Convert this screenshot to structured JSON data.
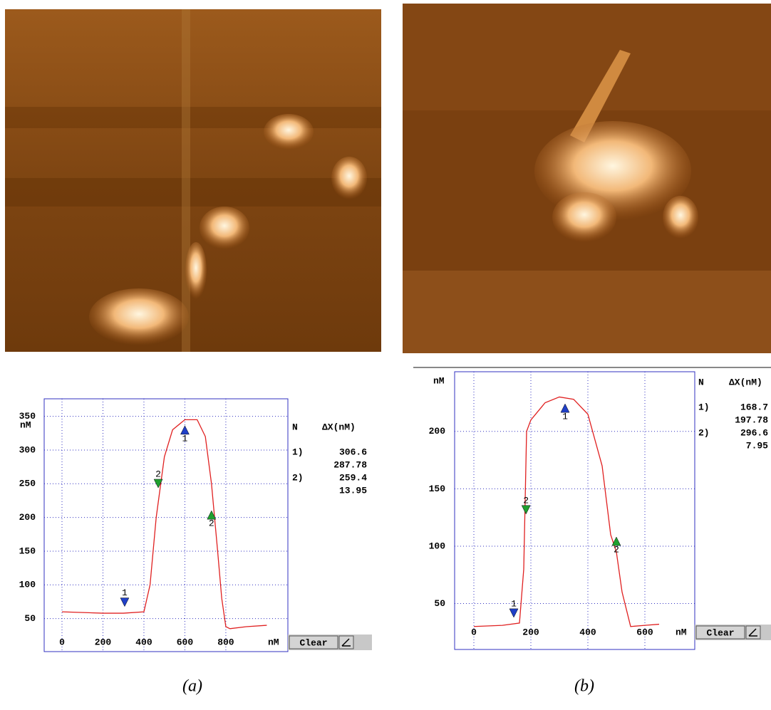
{
  "chart_data": [
    {
      "type": "line",
      "panel_label": "(a)",
      "x_label": "nM",
      "y_label": "nM",
      "xlim": [
        -87,
        1103
      ],
      "ylim": [
        1,
        376
      ],
      "xticks": [
        0,
        200,
        400,
        600,
        800
      ],
      "yticks": [
        50,
        100,
        150,
        200,
        250,
        300,
        350
      ],
      "grid": true,
      "x": [
        0,
        200,
        300,
        400,
        430,
        460,
        500,
        540,
        600,
        660,
        700,
        730,
        760,
        780,
        800,
        820,
        900,
        1000
      ],
      "series": [
        {
          "color": "#e02020",
          "values": [
            60,
            58,
            58,
            60,
            100,
            200,
            290,
            330,
            345,
            345,
            320,
            250,
            150,
            80,
            38,
            35,
            38,
            40
          ]
        }
      ],
      "markers": [
        {
          "label": "1",
          "x": 306,
          "y": 68,
          "direction": "down",
          "color": "#2040c8"
        },
        {
          "label": "1",
          "x": 600,
          "y": 336,
          "direction": "up",
          "color": "#2040c8"
        },
        {
          "label": "2",
          "x": 470,
          "y": 244,
          "direction": "down",
          "color": "#20a030"
        },
        {
          "label": "2",
          "x": 730,
          "y": 210,
          "direction": "up",
          "color": "#20a030"
        }
      ],
      "readout": {
        "header": [
          "N",
          "ΔX(nM)"
        ],
        "rows": [
          {
            "label": "1)",
            "values": [
              306.6,
              287.78
            ]
          },
          {
            "label": "2)",
            "values": [
              259.4,
              13.95
            ]
          }
        ]
      },
      "button": "Clear"
    },
    {
      "type": "line",
      "panel_label": "(b)",
      "x_label": "nM",
      "y_label": "nM",
      "xlim": [
        -67.5,
        775
      ],
      "ylim": [
        10,
        252
      ],
      "xticks": [
        0,
        200,
        400,
        600
      ],
      "yticks": [
        50,
        100,
        150,
        200
      ],
      "grid": true,
      "x": [
        0,
        100,
        160,
        175,
        185,
        200,
        250,
        300,
        350,
        400,
        450,
        480,
        500,
        520,
        550,
        600,
        650
      ],
      "series": [
        {
          "color": "#e02020",
          "values": [
            30,
            31,
            33,
            80,
            200,
            210,
            225,
            230,
            228,
            215,
            170,
            110,
            95,
            60,
            30,
            31,
            32
          ]
        }
      ],
      "markers": [
        {
          "label": "1",
          "x": 140,
          "y": 38,
          "direction": "down",
          "color": "#2040c8"
        },
        {
          "label": "1",
          "x": 320,
          "y": 224,
          "direction": "up",
          "color": "#2040c8"
        },
        {
          "label": "2",
          "x": 183,
          "y": 128,
          "direction": "down",
          "color": "#20a030"
        },
        {
          "label": "2",
          "x": 500,
          "y": 108,
          "direction": "up",
          "color": "#20a030"
        }
      ],
      "readout": {
        "header": [
          "N",
          "ΔX(nM)"
        ],
        "rows": [
          {
            "label": "1)",
            "values": [
              168.7,
              197.78
            ]
          },
          {
            "label": "2)",
            "values": [
              296.6,
              7.95
            ]
          }
        ]
      },
      "button": "Clear"
    }
  ]
}
